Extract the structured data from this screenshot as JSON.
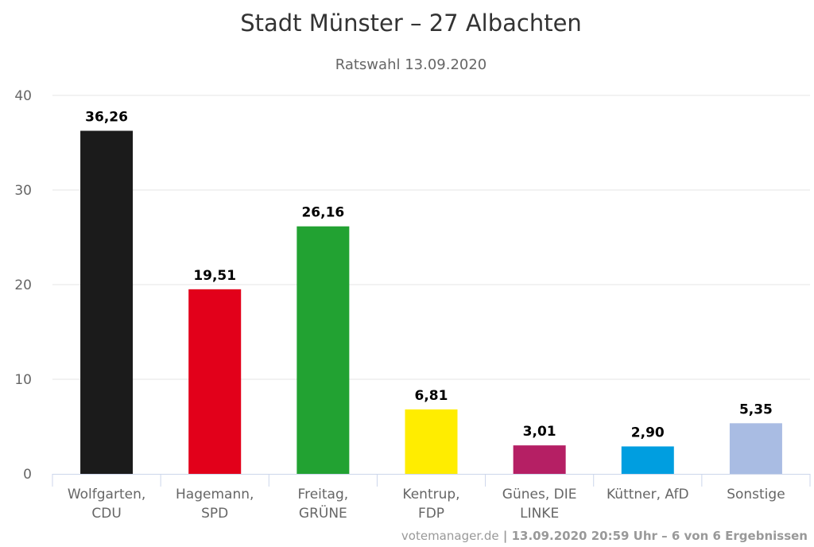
{
  "chart_data": {
    "type": "bar",
    "title": "Stadt Münster – 27 Albachten",
    "subtitle": "Ratswahl 13.09.2020",
    "xlabel": "",
    "ylabel": "",
    "ylim": [
      0,
      40
    ],
    "yticks": [
      0,
      10,
      20,
      30,
      40
    ],
    "grid": true,
    "legend": "none",
    "categories": [
      [
        "Wolfgarten,",
        "CDU"
      ],
      [
        "Hagemann,",
        "SPD"
      ],
      [
        "Freitag,",
        "GRÜNE"
      ],
      [
        "Kentrup,",
        "FDP"
      ],
      [
        "Günes, DIE",
        "LINKE"
      ],
      [
        "Küttner, AfD"
      ],
      [
        "Sonstige"
      ]
    ],
    "values": [
      36.26,
      19.51,
      26.16,
      6.81,
      3.01,
      2.9,
      5.35
    ],
    "value_labels": [
      "36,26",
      "19,51",
      "26,16",
      "6,81",
      "3,01",
      "2,90",
      "5,35"
    ],
    "colors": [
      "#1b1b1b",
      "#e2001a",
      "#22a232",
      "#ffed00",
      "#b51f64",
      "#009ee0",
      "#a9bce3"
    ],
    "credits": {
      "source": "votemanager.de",
      "separator": " | ",
      "info": "13.09.2020 20:59 Uhr – 6 von 6 Ergebnissen"
    }
  }
}
